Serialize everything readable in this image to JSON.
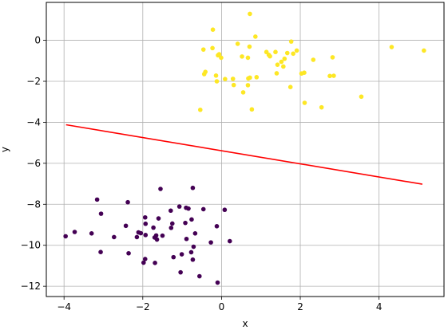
{
  "chart_data": {
    "type": "scatter",
    "xlabel": "x",
    "ylabel": "y",
    "xlim": [
      -4.45,
      5.65
    ],
    "ylim": [
      -12.5,
      1.85
    ],
    "grid": true,
    "xticks": [
      -4,
      -2,
      0,
      2,
      4
    ],
    "yticks": [
      -12,
      -10,
      -8,
      -6,
      -4,
      -2,
      0
    ],
    "xtick_labels": [
      "−4",
      "−2",
      "0",
      "2",
      "4"
    ],
    "ytick_labels": [
      "−12",
      "−10",
      "−8",
      "−6",
      "−4",
      "−2",
      "0"
    ],
    "colors": {
      "cluster_top": "#fde725",
      "cluster_bottom": "#440154",
      "line": "#ff0000",
      "grid": "#b0b0b0"
    },
    "series": [
      {
        "values": [
          [
            0.72,
            1.29
          ],
          [
            -0.22,
            0.52
          ],
          [
            0.86,
            0.18
          ],
          [
            -0.46,
            -0.45
          ],
          [
            -0.23,
            -0.38
          ],
          [
            0.41,
            -0.17
          ],
          [
            -0.06,
            -0.68
          ],
          [
            -0.01,
            -0.85
          ],
          [
            0.71,
            -0.31
          ],
          [
            1.14,
            -0.57
          ],
          [
            1.37,
            -0.57
          ],
          [
            1.77,
            -0.06
          ],
          [
            1.91,
            -0.5
          ],
          [
            1.82,
            -0.65
          ],
          [
            1.67,
            -0.62
          ],
          [
            1.42,
            -1.19
          ],
          [
            1.23,
            -0.78
          ],
          [
            1.6,
            -0.9
          ],
          [
            1.57,
            -1.28
          ],
          [
            2.1,
            -1.58
          ],
          [
            2.03,
            -1.62
          ],
          [
            2.33,
            -0.95
          ],
          [
            2.82,
            -0.83
          ],
          [
            2.75,
            -1.74
          ],
          [
            4.32,
            -0.33
          ],
          [
            5.14,
            -0.5
          ],
          [
            -0.41,
            -1.54
          ],
          [
            -0.44,
            -1.65
          ],
          [
            -0.14,
            -1.72
          ],
          [
            -0.12,
            -2.0
          ],
          [
            0.09,
            -1.89
          ],
          [
            0.29,
            -1.88
          ],
          [
            0.31,
            -2.18
          ],
          [
            0.55,
            -2.54
          ],
          [
            0.67,
            -2.19
          ],
          [
            0.68,
            -1.86
          ],
          [
            0.72,
            -1.82
          ],
          [
            0.89,
            -1.8
          ],
          [
            1.4,
            -1.61
          ],
          [
            1.75,
            -2.28
          ],
          [
            2.11,
            -3.05
          ],
          [
            2.54,
            -3.27
          ],
          [
            2.85,
            -1.73
          ],
          [
            3.55,
            -2.75
          ],
          [
            -0.54,
            -3.39
          ],
          [
            0.77,
            -3.37
          ],
          [
            0.52,
            -0.79
          ],
          [
            0.67,
            -0.85
          ],
          [
            1.2,
            -0.71
          ],
          [
            -0.09,
            -0.73
          ],
          [
            1.52,
            -1.05
          ]
        ]
      },
      {
        "values": [
          [
            -3.16,
            -7.77
          ],
          [
            -3.06,
            -8.46
          ],
          [
            -2.38,
            -7.9
          ],
          [
            -1.55,
            -7.25
          ],
          [
            -0.73,
            -7.2
          ],
          [
            -1.07,
            -8.11
          ],
          [
            -0.9,
            -8.17
          ],
          [
            -0.84,
            -8.21
          ],
          [
            -0.46,
            -8.24
          ],
          [
            0.08,
            -8.27
          ],
          [
            -1.94,
            -8.64
          ],
          [
            -1.6,
            -8.69
          ],
          [
            -1.29,
            -8.31
          ],
          [
            -0.92,
            -8.91
          ],
          [
            -0.76,
            -8.74
          ],
          [
            -2.43,
            -9.05
          ],
          [
            -1.93,
            -8.95
          ],
          [
            -1.73,
            -9.14
          ],
          [
            -1.66,
            -9.52
          ],
          [
            -1.25,
            -8.94
          ],
          [
            -1.28,
            -9.15
          ],
          [
            -2.11,
            -9.37
          ],
          [
            -2.05,
            -9.41
          ],
          [
            -1.93,
            -9.5
          ],
          [
            -2.15,
            -9.6
          ],
          [
            -1.7,
            -9.62
          ],
          [
            -1.64,
            -9.72
          ],
          [
            -1.5,
            -9.53
          ],
          [
            -0.89,
            -9.69
          ],
          [
            -0.67,
            -9.42
          ],
          [
            -0.12,
            -9.07
          ],
          [
            -3.96,
            -9.56
          ],
          [
            -3.73,
            -9.35
          ],
          [
            -3.3,
            -9.42
          ],
          [
            -2.73,
            -9.6
          ],
          [
            -3.07,
            -10.33
          ],
          [
            -2.36,
            -10.39
          ],
          [
            -1.98,
            -10.85
          ],
          [
            -1.94,
            -10.67
          ],
          [
            -1.69,
            -10.86
          ],
          [
            -1.22,
            -10.58
          ],
          [
            -1.01,
            -10.44
          ],
          [
            -0.77,
            -10.34
          ],
          [
            -0.71,
            -10.07
          ],
          [
            -0.73,
            -10.7
          ],
          [
            -0.27,
            -9.86
          ],
          [
            0.21,
            -9.8
          ],
          [
            -1.04,
            -11.32
          ],
          [
            -0.56,
            -11.51
          ],
          [
            -0.1,
            -11.82
          ]
        ]
      }
    ],
    "line": {
      "x": [
        -3.95,
        5.1
      ],
      "y": [
        -4.12,
        -7.02
      ]
    }
  }
}
